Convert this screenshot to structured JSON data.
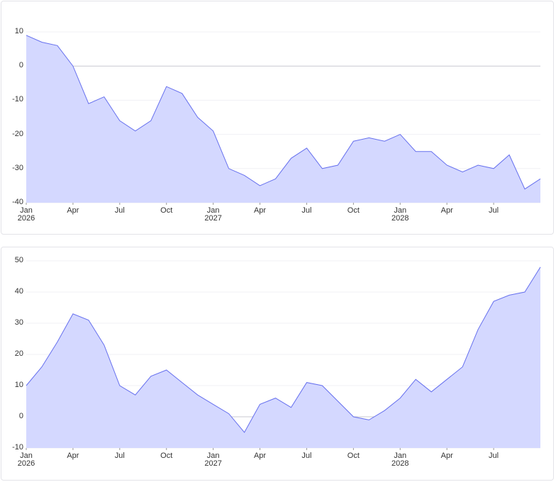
{
  "chart_data": [
    {
      "type": "area",
      "color": "#6670ee",
      "area_color": "#d4d8ff",
      "grid": true,
      "x": [
        "2026-01",
        "2026-02",
        "2026-03",
        "2026-04",
        "2026-05",
        "2026-06",
        "2026-07",
        "2026-08",
        "2026-09",
        "2026-10",
        "2026-11",
        "2026-12",
        "2027-01",
        "2027-02",
        "2027-03",
        "2027-04",
        "2027-05",
        "2027-06",
        "2027-07",
        "2027-08",
        "2027-09",
        "2027-10",
        "2027-11",
        "2027-12",
        "2028-01",
        "2028-02",
        "2028-03",
        "2028-04",
        "2028-05",
        "2028-06",
        "2028-07",
        "2028-08",
        "2028-09",
        "2028-10"
      ],
      "values": [
        9,
        7,
        6,
        0,
        -11,
        -9,
        -16,
        -19,
        -16,
        -6,
        -8,
        -15,
        -19,
        -30,
        -32,
        -35,
        -33,
        -27,
        -24,
        -30,
        -29,
        -22,
        -21,
        -22,
        -20,
        -25,
        -25,
        -29,
        -31,
        -29,
        -30,
        -26,
        -36,
        -33
      ],
      "xlim": [
        "2026-01",
        "2028-10"
      ],
      "xticks": [
        {
          "value": "2026-01",
          "label": "Jan\n2026"
        },
        {
          "value": "2026-04",
          "label": "Apr"
        },
        {
          "value": "2026-07",
          "label": "Jul"
        },
        {
          "value": "2026-10",
          "label": "Oct"
        },
        {
          "value": "2027-01",
          "label": "Jan\n2027"
        },
        {
          "value": "2027-04",
          "label": "Apr"
        },
        {
          "value": "2027-07",
          "label": "Jul"
        },
        {
          "value": "2027-10",
          "label": "Oct"
        },
        {
          "value": "2028-01",
          "label": "Jan\n2028"
        },
        {
          "value": "2028-04",
          "label": "Apr"
        },
        {
          "value": "2028-07",
          "label": "Jul"
        }
      ],
      "ylim": [
        -40,
        10
      ],
      "yticks": [
        -40,
        -30,
        -20,
        -10,
        0,
        10
      ]
    },
    {
      "type": "area",
      "color": "#6670ee",
      "area_color": "#d4d8ff",
      "grid": true,
      "x": [
        "2026-01",
        "2026-02",
        "2026-03",
        "2026-04",
        "2026-05",
        "2026-06",
        "2026-07",
        "2026-08",
        "2026-09",
        "2026-10",
        "2026-11",
        "2026-12",
        "2027-01",
        "2027-02",
        "2027-03",
        "2027-04",
        "2027-05",
        "2027-06",
        "2027-07",
        "2027-08",
        "2027-09",
        "2027-10",
        "2027-11",
        "2027-12",
        "2028-01",
        "2028-02",
        "2028-03",
        "2028-04",
        "2028-05",
        "2028-06",
        "2028-07",
        "2028-08",
        "2028-09",
        "2028-10"
      ],
      "values": [
        10,
        16,
        24,
        33,
        31,
        23,
        10,
        7,
        13,
        15,
        11,
        7,
        4,
        1,
        -5,
        4,
        6,
        3,
        11,
        10,
        5,
        0,
        -1,
        2,
        6,
        12,
        8,
        12,
        16,
        28,
        37,
        39,
        40,
        48
      ],
      "xlim": [
        "2026-01",
        "2028-10"
      ],
      "xticks": [
        {
          "value": "2026-01",
          "label": "Jan\n2026"
        },
        {
          "value": "2026-04",
          "label": "Apr"
        },
        {
          "value": "2026-07",
          "label": "Jul"
        },
        {
          "value": "2026-10",
          "label": "Oct"
        },
        {
          "value": "2027-01",
          "label": "Jan\n2027"
        },
        {
          "value": "2027-04",
          "label": "Apr"
        },
        {
          "value": "2027-07",
          "label": "Jul"
        },
        {
          "value": "2027-10",
          "label": "Oct"
        },
        {
          "value": "2028-01",
          "label": "Jan\n2028"
        },
        {
          "value": "2028-04",
          "label": "Apr"
        },
        {
          "value": "2028-07",
          "label": "Jul"
        }
      ],
      "ylim": [
        -10,
        50
      ],
      "yticks": [
        -10,
        0,
        10,
        20,
        30,
        40,
        50
      ]
    }
  ]
}
